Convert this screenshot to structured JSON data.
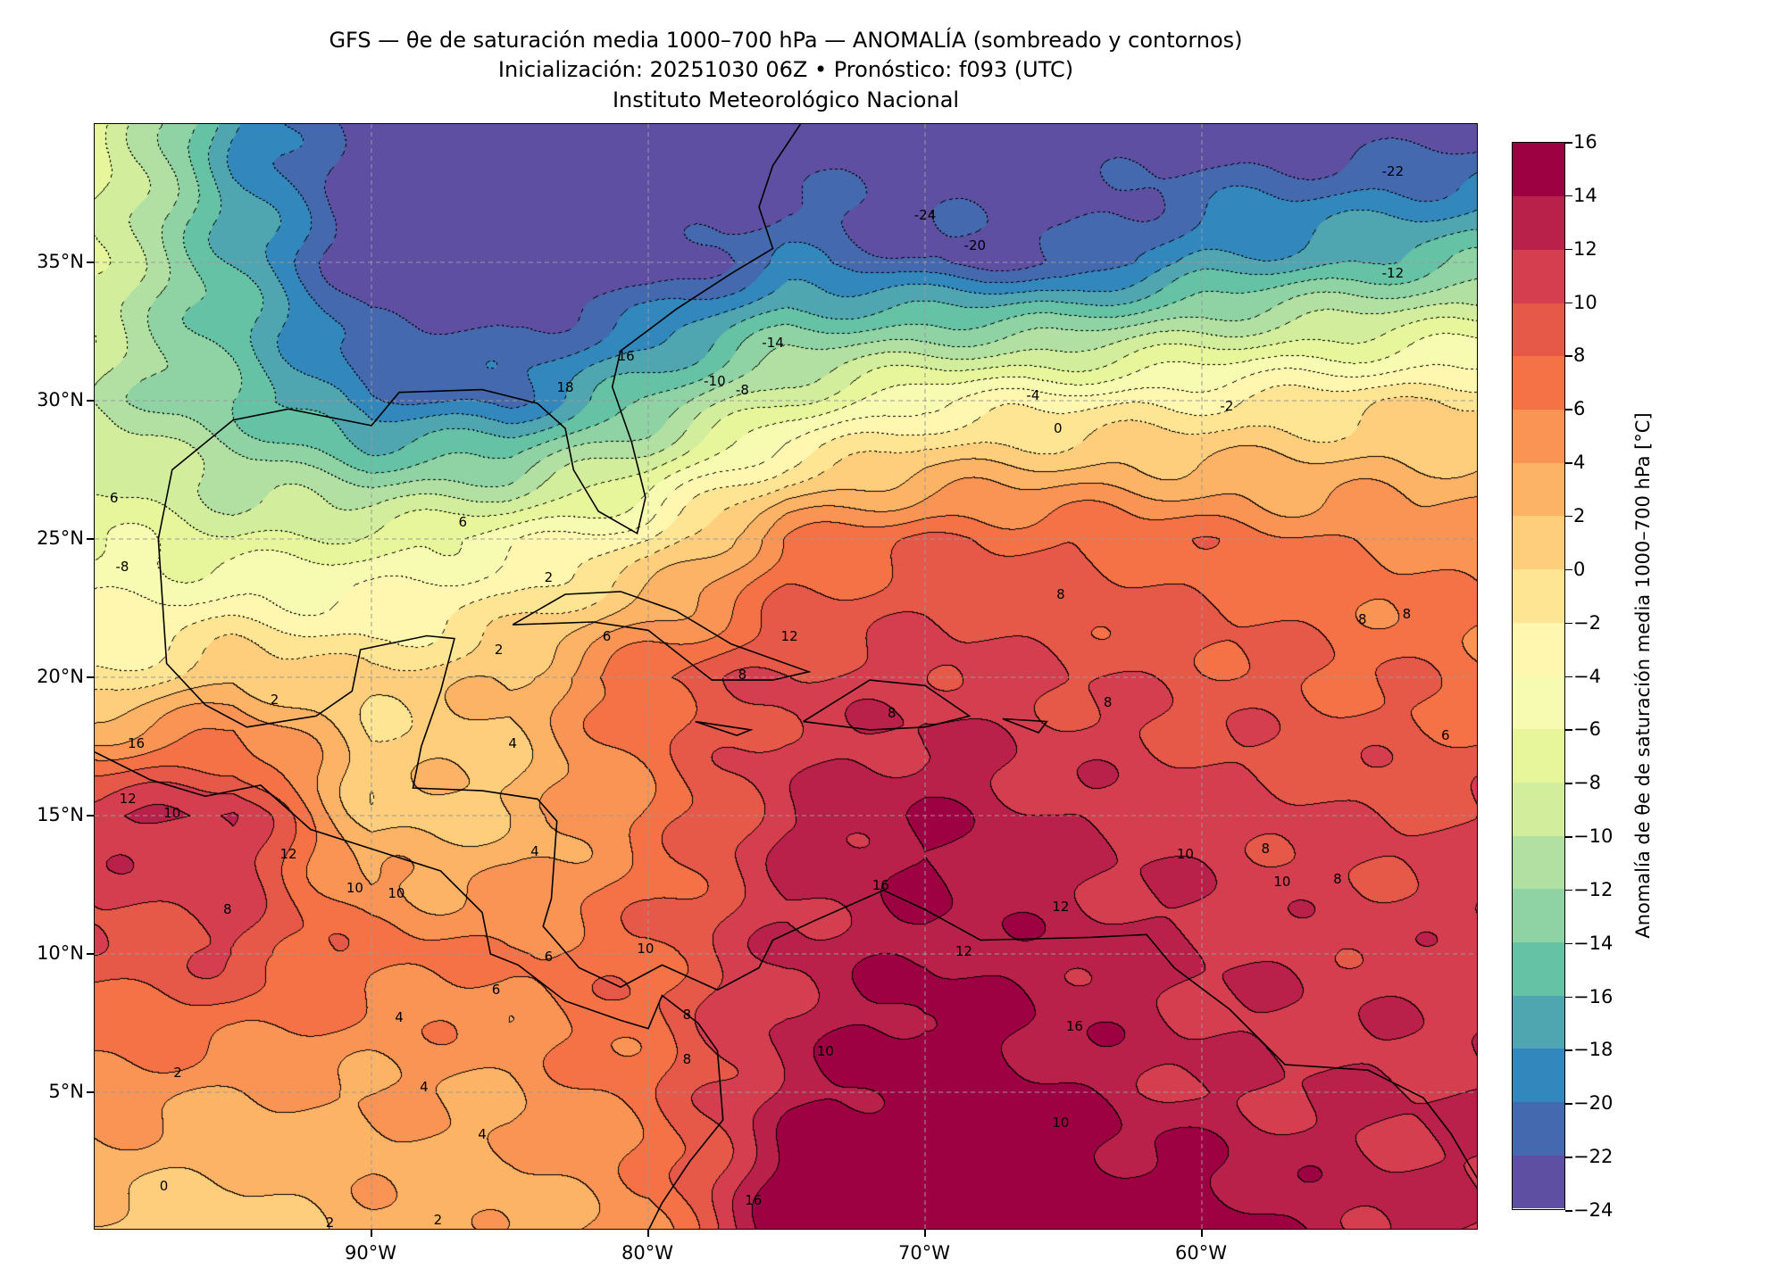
{
  "title": {
    "line1": "GFS — θe de saturación media 1000–700 hPa — ANOMALÍA (sombreado y contornos)",
    "line2": "Inicialización: 20251030 06Z   •   Pronóstico: f093 (UTC)",
    "line3": "Instituto Meteorológico Nacional"
  },
  "chart_data": {
    "type": "heatmap",
    "title": "GFS — θe de saturación media 1000–700 hPa — ANOMALÍA (sombreado y contornos)",
    "lon_range": [
      -100,
      -50
    ],
    "lat_range": [
      0,
      40
    ],
    "x_ticks": [
      {
        "value": -90,
        "label": "90°W"
      },
      {
        "value": -80,
        "label": "80°W"
      },
      {
        "value": -70,
        "label": "70°W"
      },
      {
        "value": -60,
        "label": "60°W"
      }
    ],
    "y_ticks": [
      {
        "value": 35,
        "label": "35°N"
      },
      {
        "value": 30,
        "label": "30°N"
      },
      {
        "value": 25,
        "label": "25°N"
      },
      {
        "value": 20,
        "label": "20°N"
      },
      {
        "value": 15,
        "label": "15°N"
      },
      {
        "value": 10,
        "label": "10°N"
      },
      {
        "value": 5,
        "label": "5°N"
      }
    ],
    "grid": true,
    "grid_lons": [
      -100,
      -95,
      -90,
      -85,
      -80,
      -75,
      -70,
      -65,
      -60,
      -55,
      -50
    ],
    "grid_lats": [
      40,
      35,
      30,
      25,
      20,
      15,
      10,
      5,
      0
    ],
    "anomaly_grid": [
      [
        -6,
        -18,
        -24,
        -24,
        -24,
        -24,
        -24,
        -24,
        -24,
        -24,
        -24
      ],
      [
        -8,
        -16,
        -24,
        -24,
        -24,
        -20,
        -22,
        -22,
        -18,
        -16,
        -14
      ],
      [
        -10,
        -14,
        -20,
        -20,
        -14,
        -8,
        -4,
        -3,
        -2,
        -1,
        0
      ],
      [
        -6,
        -8,
        -7,
        -5,
        -2,
        6,
        8,
        8,
        7,
        6,
        5
      ],
      [
        -2,
        2,
        0,
        2,
        8,
        10,
        11,
        10,
        9,
        8,
        7
      ],
      [
        12,
        12,
        1,
        2,
        6,
        12,
        14,
        12,
        11,
        10,
        10
      ],
      [
        9,
        10,
        7,
        6,
        8,
        12,
        14,
        13,
        12,
        11,
        11
      ],
      [
        5,
        4,
        4,
        4,
        7,
        13,
        16,
        14,
        12,
        12,
        12
      ],
      [
        1,
        1,
        3,
        3,
        5,
        16,
        16,
        16,
        16,
        13,
        12
      ]
    ],
    "levels": [
      -24,
      -22,
      -20,
      -18,
      -16,
      -14,
      -12,
      -10,
      -8,
      -6,
      -4,
      -2,
      0,
      2,
      4,
      6,
      8,
      10,
      12,
      14,
      16
    ],
    "colors": [
      "#5e4fa2",
      "#4469ae",
      "#3288bd",
      "#4fa6b1",
      "#66c2a5",
      "#8fd2a4",
      "#b2e0a2",
      "#d2ed9b",
      "#e8f69b",
      "#f7fbb2",
      "#fff6b0",
      "#fee593",
      "#fece7c",
      "#fdb365",
      "#f99455",
      "#f47245",
      "#e65848",
      "#d53e4f",
      "#b9214a",
      "#9e0142"
    ],
    "colorbar": {
      "label": "Anomalía de θe de saturación media 1000–700 hPa [°C]",
      "tick_labels": [
        "16",
        "14",
        "12",
        "10",
        "8",
        "6",
        "4",
        "2",
        "0",
        "−2",
        "−4",
        "−6",
        "−8",
        "−10",
        "−12",
        "−14",
        "−16",
        "−18",
        "−20",
        "−22",
        "−24"
      ]
    },
    "contour_labels": [
      {
        "text": "-22",
        "lon": -53.1,
        "lat": 38.3
      },
      {
        "text": "-24",
        "lon": -70.0,
        "lat": 36.7
      },
      {
        "text": "-20",
        "lon": -68.2,
        "lat": 35.6
      },
      {
        "text": "-12",
        "lon": -53.1,
        "lat": 34.6
      },
      {
        "text": "-14",
        "lon": -75.5,
        "lat": 32.1
      },
      {
        "text": "16",
        "lon": -80.8,
        "lat": 31.6
      },
      {
        "text": "18",
        "lon": -83.0,
        "lat": 30.5
      },
      {
        "text": "-10",
        "lon": -77.6,
        "lat": 30.7
      },
      {
        "text": "-8",
        "lon": -76.6,
        "lat": 30.4
      },
      {
        "text": "-4",
        "lon": -66.1,
        "lat": 30.2
      },
      {
        "text": "-2",
        "lon": -59.1,
        "lat": 29.8
      },
      {
        "text": "0",
        "lon": -65.2,
        "lat": 29.0
      },
      {
        "text": "6",
        "lon": -86.7,
        "lat": 25.6
      },
      {
        "text": "2",
        "lon": -83.6,
        "lat": 23.6
      },
      {
        "text": "6",
        "lon": -81.5,
        "lat": 21.5
      },
      {
        "text": "12",
        "lon": -74.9,
        "lat": 21.5
      },
      {
        "text": "2",
        "lon": -85.4,
        "lat": 21.0
      },
      {
        "text": "8",
        "lon": -65.1,
        "lat": 23.0
      },
      {
        "text": "8",
        "lon": -54.2,
        "lat": 22.1
      },
      {
        "text": "8",
        "lon": -52.6,
        "lat": 22.3
      },
      {
        "text": "2",
        "lon": -93.5,
        "lat": 19.2
      },
      {
        "text": "16",
        "lon": -98.5,
        "lat": 17.6
      },
      {
        "text": "12",
        "lon": -98.8,
        "lat": 15.6
      },
      {
        "text": "10",
        "lon": -97.2,
        "lat": 15.1
      },
      {
        "text": "12",
        "lon": -93.0,
        "lat": 13.6
      },
      {
        "text": "8",
        "lon": -95.2,
        "lat": 11.6
      },
      {
        "text": "10",
        "lon": -90.6,
        "lat": 12.4
      },
      {
        "text": "10",
        "lon": -89.1,
        "lat": 12.2
      },
      {
        "text": "4",
        "lon": -84.9,
        "lat": 17.6
      },
      {
        "text": "4",
        "lon": -84.1,
        "lat": 13.7
      },
      {
        "text": "6",
        "lon": -83.6,
        "lat": 9.9
      },
      {
        "text": "10",
        "lon": -80.1,
        "lat": 10.2
      },
      {
        "text": "6",
        "lon": -85.5,
        "lat": 8.7
      },
      {
        "text": "4",
        "lon": -89.0,
        "lat": 7.7
      },
      {
        "text": "2",
        "lon": -97.0,
        "lat": 5.7
      },
      {
        "text": "4",
        "lon": -88.1,
        "lat": 5.2
      },
      {
        "text": "4",
        "lon": -86.0,
        "lat": 3.5
      },
      {
        "text": "0",
        "lon": -97.5,
        "lat": 1.6
      },
      {
        "text": "2",
        "lon": -91.5,
        "lat": 0.3
      },
      {
        "text": "2",
        "lon": -87.6,
        "lat": 0.4
      },
      {
        "text": "8",
        "lon": -78.6,
        "lat": 7.8
      },
      {
        "text": "8",
        "lon": -78.6,
        "lat": 6.2
      },
      {
        "text": "16",
        "lon": -71.6,
        "lat": 12.5
      },
      {
        "text": "12",
        "lon": -65.1,
        "lat": 11.7
      },
      {
        "text": "12",
        "lon": -68.6,
        "lat": 10.1
      },
      {
        "text": "16",
        "lon": -64.6,
        "lat": 7.4
      },
      {
        "text": "10",
        "lon": -73.6,
        "lat": 6.5
      },
      {
        "text": "10",
        "lon": -65.1,
        "lat": 3.9
      },
      {
        "text": "16",
        "lon": -76.2,
        "lat": 1.1
      },
      {
        "text": "8",
        "lon": -63.4,
        "lat": 19.1
      },
      {
        "text": "6",
        "lon": -51.2,
        "lat": 17.9
      },
      {
        "text": "8",
        "lon": -57.7,
        "lat": 13.8
      },
      {
        "text": "10",
        "lon": -60.6,
        "lat": 13.6
      },
      {
        "text": "10",
        "lon": -57.1,
        "lat": 12.6
      },
      {
        "text": "8",
        "lon": -55.1,
        "lat": 12.7
      },
      {
        "text": "8",
        "lon": -71.2,
        "lat": 18.7
      },
      {
        "text": "8",
        "lon": -76.6,
        "lat": 20.1
      },
      {
        "text": "6",
        "lon": -99.3,
        "lat": 26.5
      },
      {
        "text": "-8",
        "lon": -99.0,
        "lat": 24.0
      }
    ],
    "coastlines": [
      [
        [
          -97.5,
          22
        ],
        [
          -97.7,
          25
        ],
        [
          -97.2,
          27.5
        ],
        [
          -95,
          29.3
        ],
        [
          -93,
          29.7
        ],
        [
          -90,
          29.1
        ],
        [
          -89,
          30.3
        ],
        [
          -86,
          30.4
        ],
        [
          -84,
          29.9
        ],
        [
          -83,
          29
        ],
        [
          -82.7,
          27.5
        ],
        [
          -81.8,
          26
        ],
        [
          -80.4,
          25.2
        ],
        [
          -80.1,
          26.5
        ],
        [
          -80.6,
          28.5
        ],
        [
          -81.3,
          30.5
        ],
        [
          -81,
          31.8
        ],
        [
          -79,
          33.3
        ],
        [
          -77,
          34.6
        ],
        [
          -75.5,
          35.5
        ],
        [
          -76,
          37
        ],
        [
          -75.5,
          38.5
        ],
        [
          -74.5,
          40
        ]
      ],
      [
        [
          -97.5,
          22
        ],
        [
          -97.4,
          20.5
        ],
        [
          -96,
          19
        ],
        [
          -94.5,
          18.2
        ],
        [
          -92,
          18.6
        ],
        [
          -90.7,
          19.5
        ],
        [
          -90.4,
          21
        ],
        [
          -88,
          21.5
        ],
        [
          -87,
          21.4
        ],
        [
          -87.5,
          19.5
        ],
        [
          -88.2,
          17.5
        ],
        [
          -88.5,
          16
        ],
        [
          -86,
          15.9
        ],
        [
          -84,
          15.6
        ],
        [
          -83.3,
          14.8
        ],
        [
          -83.5,
          12
        ],
        [
          -83.8,
          11
        ],
        [
          -82.5,
          9.5
        ],
        [
          -81,
          8.8
        ],
        [
          -79.5,
          9.6
        ],
        [
          -77.5,
          8.7
        ],
        [
          -76,
          9.5
        ],
        [
          -75.5,
          10.5
        ],
        [
          -74,
          11.2
        ],
        [
          -71.5,
          12.3
        ],
        [
          -70,
          11.6
        ],
        [
          -68,
          10.5
        ],
        [
          -64,
          10.6
        ],
        [
          -62,
          10.7
        ],
        [
          -61,
          9.5
        ],
        [
          -59,
          8
        ],
        [
          -57,
          6
        ],
        [
          -54,
          5.8
        ],
        [
          -52,
          4.8
        ],
        [
          -51,
          3.5
        ],
        [
          -50,
          1.8
        ]
      ],
      [
        [
          -100,
          17.3
        ],
        [
          -98,
          16.3
        ],
        [
          -96,
          15.7
        ],
        [
          -94,
          16.1
        ],
        [
          -92.2,
          14.5
        ],
        [
          -90,
          13.8
        ],
        [
          -87.5,
          13
        ],
        [
          -86,
          11.5
        ],
        [
          -85.7,
          10
        ],
        [
          -84.7,
          9.6
        ],
        [
          -83,
          8.3
        ],
        [
          -81,
          7.6
        ],
        [
          -80,
          7.3
        ],
        [
          -79.5,
          8.5
        ],
        [
          -78.2,
          7.5
        ],
        [
          -77.5,
          6.5
        ],
        [
          -77.3,
          4
        ],
        [
          -78.5,
          2.5
        ],
        [
          -79.5,
          1
        ],
        [
          -80,
          0
        ]
      ],
      [
        [
          -84.9,
          21.9
        ],
        [
          -83,
          23
        ],
        [
          -81,
          23.1
        ],
        [
          -79,
          22.4
        ],
        [
          -77,
          21.2
        ],
        [
          -74.2,
          20.2
        ],
        [
          -75.5,
          19.9
        ],
        [
          -77.7,
          19.9
        ],
        [
          -80,
          21.7
        ],
        [
          -82,
          22
        ],
        [
          -84.9,
          21.9
        ]
      ],
      [
        [
          -74.4,
          18.4
        ],
        [
          -72,
          19.9
        ],
        [
          -70,
          19.7
        ],
        [
          -68.4,
          18.6
        ],
        [
          -70,
          18.2
        ],
        [
          -72,
          18.1
        ],
        [
          -74.4,
          18.4
        ]
      ],
      [
        [
          -78.3,
          18.4
        ],
        [
          -76.3,
          18.1
        ],
        [
          -76.8,
          17.9
        ],
        [
          -78.3,
          18.4
        ]
      ],
      [
        [
          -67.2,
          18.5
        ],
        [
          -65.6,
          18.4
        ],
        [
          -65.9,
          18
        ],
        [
          -67.2,
          18.5
        ]
      ]
    ]
  }
}
